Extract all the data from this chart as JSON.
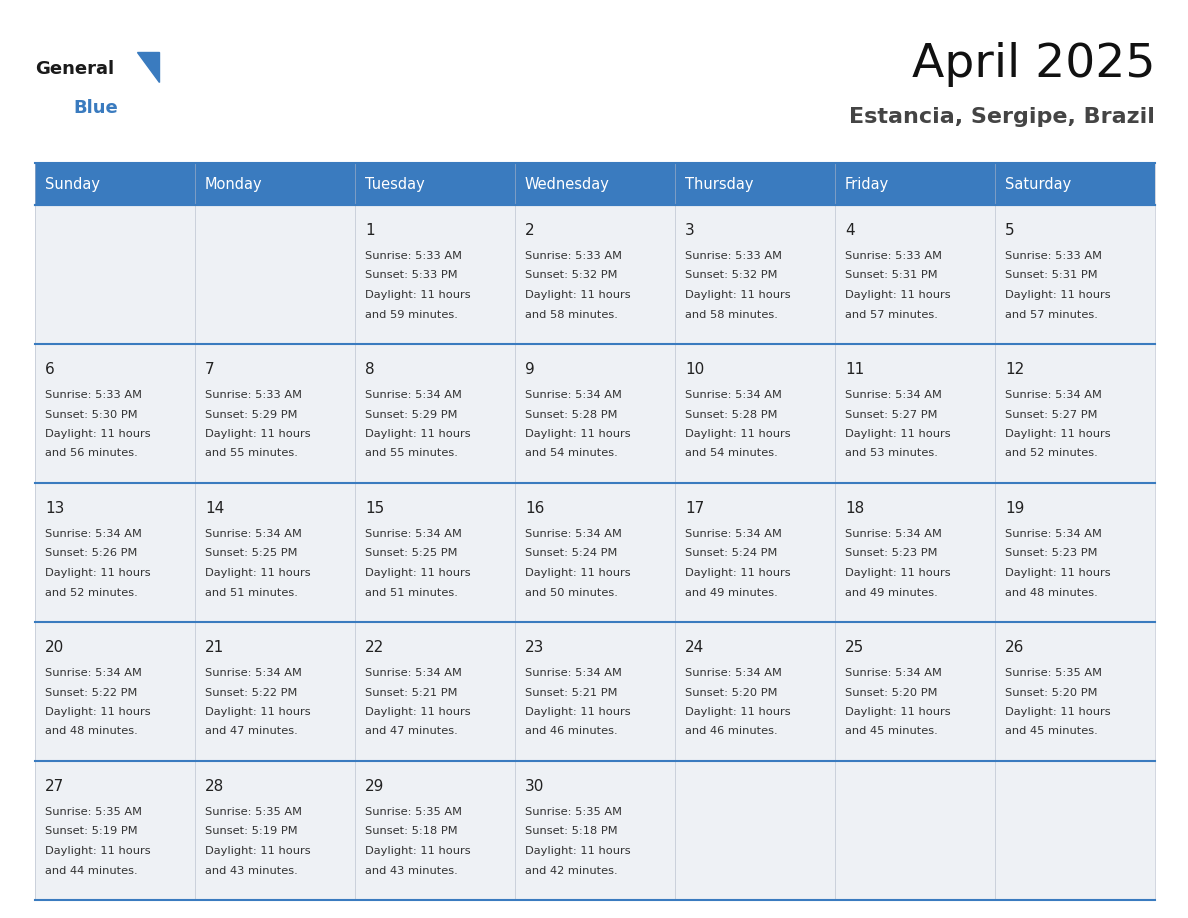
{
  "title": "April 2025",
  "subtitle": "Estancia, Sergipe, Brazil",
  "header_bg_color": "#3a7bbf",
  "header_text_color": "#ffffff",
  "cell_bg_color": "#eef1f5",
  "cell_bg_color_white": "#ffffff",
  "day_number_color": "#222222",
  "cell_text_color": "#333333",
  "border_color": "#3a7bbf",
  "days_of_week": [
    "Sunday",
    "Monday",
    "Tuesday",
    "Wednesday",
    "Thursday",
    "Friday",
    "Saturday"
  ],
  "weeks": [
    [
      {
        "date": "",
        "sunrise": "",
        "sunset": "",
        "daylight": ""
      },
      {
        "date": "",
        "sunrise": "",
        "sunset": "",
        "daylight": ""
      },
      {
        "date": "1",
        "sunrise": "5:33 AM",
        "sunset": "5:33 PM",
        "daylight": "11 hours and 59 minutes."
      },
      {
        "date": "2",
        "sunrise": "5:33 AM",
        "sunset": "5:32 PM",
        "daylight": "11 hours and 58 minutes."
      },
      {
        "date": "3",
        "sunrise": "5:33 AM",
        "sunset": "5:32 PM",
        "daylight": "11 hours and 58 minutes."
      },
      {
        "date": "4",
        "sunrise": "5:33 AM",
        "sunset": "5:31 PM",
        "daylight": "11 hours and 57 minutes."
      },
      {
        "date": "5",
        "sunrise": "5:33 AM",
        "sunset": "5:31 PM",
        "daylight": "11 hours and 57 minutes."
      }
    ],
    [
      {
        "date": "6",
        "sunrise": "5:33 AM",
        "sunset": "5:30 PM",
        "daylight": "11 hours and 56 minutes."
      },
      {
        "date": "7",
        "sunrise": "5:33 AM",
        "sunset": "5:29 PM",
        "daylight": "11 hours and 55 minutes."
      },
      {
        "date": "8",
        "sunrise": "5:34 AM",
        "sunset": "5:29 PM",
        "daylight": "11 hours and 55 minutes."
      },
      {
        "date": "9",
        "sunrise": "5:34 AM",
        "sunset": "5:28 PM",
        "daylight": "11 hours and 54 minutes."
      },
      {
        "date": "10",
        "sunrise": "5:34 AM",
        "sunset": "5:28 PM",
        "daylight": "11 hours and 54 minutes."
      },
      {
        "date": "11",
        "sunrise": "5:34 AM",
        "sunset": "5:27 PM",
        "daylight": "11 hours and 53 minutes."
      },
      {
        "date": "12",
        "sunrise": "5:34 AM",
        "sunset": "5:27 PM",
        "daylight": "11 hours and 52 minutes."
      }
    ],
    [
      {
        "date": "13",
        "sunrise": "5:34 AM",
        "sunset": "5:26 PM",
        "daylight": "11 hours and 52 minutes."
      },
      {
        "date": "14",
        "sunrise": "5:34 AM",
        "sunset": "5:25 PM",
        "daylight": "11 hours and 51 minutes."
      },
      {
        "date": "15",
        "sunrise": "5:34 AM",
        "sunset": "5:25 PM",
        "daylight": "11 hours and 51 minutes."
      },
      {
        "date": "16",
        "sunrise": "5:34 AM",
        "sunset": "5:24 PM",
        "daylight": "11 hours and 50 minutes."
      },
      {
        "date": "17",
        "sunrise": "5:34 AM",
        "sunset": "5:24 PM",
        "daylight": "11 hours and 49 minutes."
      },
      {
        "date": "18",
        "sunrise": "5:34 AM",
        "sunset": "5:23 PM",
        "daylight": "11 hours and 49 minutes."
      },
      {
        "date": "19",
        "sunrise": "5:34 AM",
        "sunset": "5:23 PM",
        "daylight": "11 hours and 48 minutes."
      }
    ],
    [
      {
        "date": "20",
        "sunrise": "5:34 AM",
        "sunset": "5:22 PM",
        "daylight": "11 hours and 48 minutes."
      },
      {
        "date": "21",
        "sunrise": "5:34 AM",
        "sunset": "5:22 PM",
        "daylight": "11 hours and 47 minutes."
      },
      {
        "date": "22",
        "sunrise": "5:34 AM",
        "sunset": "5:21 PM",
        "daylight": "11 hours and 47 minutes."
      },
      {
        "date": "23",
        "sunrise": "5:34 AM",
        "sunset": "5:21 PM",
        "daylight": "11 hours and 46 minutes."
      },
      {
        "date": "24",
        "sunrise": "5:34 AM",
        "sunset": "5:20 PM",
        "daylight": "11 hours and 46 minutes."
      },
      {
        "date": "25",
        "sunrise": "5:34 AM",
        "sunset": "5:20 PM",
        "daylight": "11 hours and 45 minutes."
      },
      {
        "date": "26",
        "sunrise": "5:35 AM",
        "sunset": "5:20 PM",
        "daylight": "11 hours and 45 minutes."
      }
    ],
    [
      {
        "date": "27",
        "sunrise": "5:35 AM",
        "sunset": "5:19 PM",
        "daylight": "11 hours and 44 minutes."
      },
      {
        "date": "28",
        "sunrise": "5:35 AM",
        "sunset": "5:19 PM",
        "daylight": "11 hours and 43 minutes."
      },
      {
        "date": "29",
        "sunrise": "5:35 AM",
        "sunset": "5:18 PM",
        "daylight": "11 hours and 43 minutes."
      },
      {
        "date": "30",
        "sunrise": "5:35 AM",
        "sunset": "5:18 PM",
        "daylight": "11 hours and 42 minutes."
      },
      {
        "date": "",
        "sunrise": "",
        "sunset": "",
        "daylight": ""
      },
      {
        "date": "",
        "sunrise": "",
        "sunset": "",
        "daylight": ""
      },
      {
        "date": "",
        "sunrise": "",
        "sunset": "",
        "daylight": ""
      }
    ]
  ],
  "logo_general_color": "#1a1a1a",
  "logo_blue_color": "#3a7bbf",
  "title_color": "#111111",
  "subtitle_color": "#444444"
}
